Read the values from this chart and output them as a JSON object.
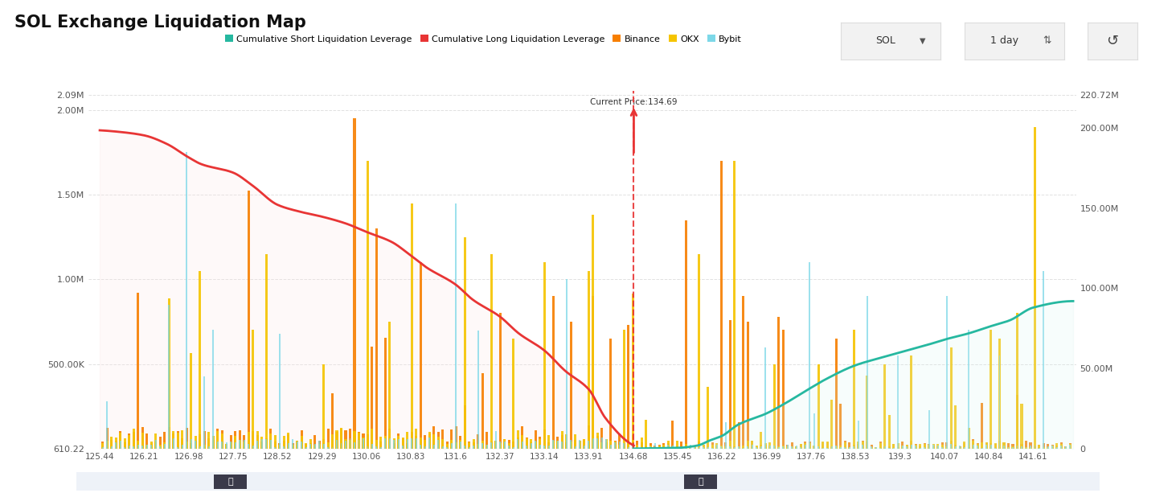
{
  "title": "SOL Exchange Liquidation Map",
  "background_color": "#ffffff",
  "plot_bg_color": "#ffffff",
  "current_price": 134.69,
  "current_price_label": "Current Price:134.69",
  "x_min": 125.44,
  "x_max": 142.3,
  "x_ticks": [
    125.44,
    126.21,
    126.98,
    127.75,
    128.52,
    129.29,
    130.06,
    130.83,
    131.6,
    132.37,
    133.14,
    133.91,
    134.68,
    135.45,
    136.22,
    136.99,
    137.76,
    138.53,
    139.3,
    140.07,
    140.84,
    141.61
  ],
  "y_left_ticks_labels": [
    "610.22",
    "500.00K",
    "1.00M",
    "1.50M",
    "2.00M",
    "2.09M"
  ],
  "y_left_ticks_vals": [
    0,
    500000,
    1000000,
    1500000,
    2000000,
    2090000
  ],
  "y_right_ticks_labels": [
    "0",
    "50.00M",
    "100.00M",
    "150.00M",
    "200.00M",
    "220.72M"
  ],
  "y_right_ticks_vals": [
    0,
    50000000,
    100000000,
    150000000,
    200000000,
    220720000
  ],
  "y_left_max": 2090000,
  "y_right_max": 220720000,
  "long_line_color": "#e83535",
  "long_fill_color": "#fce8e8",
  "short_line_color": "#26b8a0",
  "short_fill_color": "#d8f5f0",
  "current_price_line_color": "#e83535",
  "grid_color": "#cccccc",
  "grid_alpha": 0.6,
  "bar_color_binance": "#f77f00",
  "bar_color_okx": "#f5c400",
  "bar_color_bybit": "#7dd8e8",
  "legend_colors": [
    "#26b8a0",
    "#e83535",
    "#f77f00",
    "#f5c400",
    "#7dd8e8"
  ],
  "legend_labels": [
    "Cumulative Short Liquidation Leverage",
    "Cumulative Long Liquidation Leverage",
    "Binance",
    "OKX",
    "Bybit"
  ]
}
